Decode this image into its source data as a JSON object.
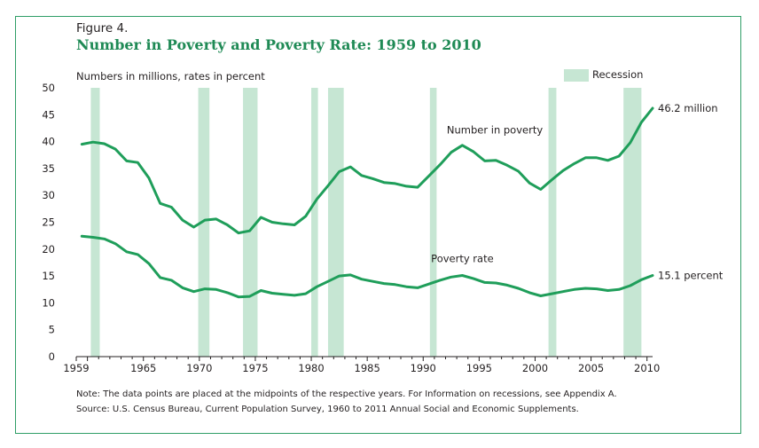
{
  "figure_label": "Figure 4.",
  "units_label": "Numbers in millions, rates in percent",
  "note": "Note:  The data points are placed at the midpoints of the respective years. For Information on recessions, see Appendix A.",
  "source": "Source:  U.S. Census Bureau, Current Population Survey, 1960 to 2011 Annual Social and Economic Supplements.",
  "colors": {
    "series": "#1f9e5a",
    "recession": "#c6e6d3",
    "border": "#2f9e67",
    "title": "#1f8a55"
  },
  "chart_data": {
    "type": "line",
    "title": "Number in Poverty and Poverty Rate: 1959 to 2010",
    "xlim": [
      1959,
      2010.5
    ],
    "ylim": [
      0,
      50
    ],
    "yticks": [
      0,
      5,
      10,
      15,
      20,
      25,
      30,
      35,
      40,
      45,
      50
    ],
    "xticks": [
      1959,
      1965,
      1970,
      1975,
      1980,
      1985,
      1990,
      1995,
      2000,
      2005,
      2010
    ],
    "grid": false,
    "legend": {
      "label": "Recession",
      "position": "top-right"
    },
    "recessions": [
      [
        1960.3,
        1961.1
      ],
      [
        1969.9,
        1970.9
      ],
      [
        1973.9,
        1975.2
      ],
      [
        1980.0,
        1980.6
      ],
      [
        1981.5,
        1982.9
      ],
      [
        1990.6,
        1991.2
      ],
      [
        2001.2,
        2001.9
      ],
      [
        2007.9,
        2009.5
      ]
    ],
    "x": [
      1959,
      1960,
      1961,
      1962,
      1963,
      1964,
      1965,
      1966,
      1967,
      1968,
      1969,
      1970,
      1971,
      1972,
      1973,
      1974,
      1975,
      1976,
      1977,
      1978,
      1979,
      1980,
      1981,
      1982,
      1983,
      1984,
      1985,
      1986,
      1987,
      1988,
      1989,
      1990,
      1991,
      1992,
      1993,
      1994,
      1995,
      1996,
      1997,
      1998,
      1999,
      2000,
      2001,
      2002,
      2003,
      2004,
      2005,
      2006,
      2007,
      2008,
      2009,
      2010
    ],
    "series": [
      {
        "name": "Number in poverty",
        "end_label": "46.2 million",
        "values": [
          39.5,
          39.9,
          39.6,
          38.6,
          36.4,
          36.1,
          33.2,
          28.5,
          27.8,
          25.4,
          24.1,
          25.4,
          25.6,
          24.5,
          23.0,
          23.4,
          25.9,
          25.0,
          24.7,
          24.5,
          26.1,
          29.3,
          31.8,
          34.4,
          35.3,
          33.7,
          33.1,
          32.4,
          32.2,
          31.7,
          31.5,
          33.6,
          35.7,
          38.0,
          39.3,
          38.1,
          36.4,
          36.5,
          35.6,
          34.5,
          32.3,
          31.1,
          32.9,
          34.6,
          35.9,
          37.0,
          37.0,
          36.5,
          37.3,
          39.8,
          43.6,
          46.2
        ]
      },
      {
        "name": "Poverty rate",
        "end_label": "15.1 percent",
        "values": [
          22.4,
          22.2,
          21.9,
          21.0,
          19.5,
          19.0,
          17.3,
          14.7,
          14.2,
          12.8,
          12.1,
          12.6,
          12.5,
          11.9,
          11.1,
          11.2,
          12.3,
          11.8,
          11.6,
          11.4,
          11.7,
          13.0,
          14.0,
          15.0,
          15.2,
          14.4,
          14.0,
          13.6,
          13.4,
          13.0,
          12.8,
          13.5,
          14.2,
          14.8,
          15.1,
          14.5,
          13.8,
          13.7,
          13.3,
          12.7,
          11.9,
          11.3,
          11.7,
          12.1,
          12.5,
          12.7,
          12.6,
          12.3,
          12.5,
          13.2,
          14.3,
          15.1
        ]
      }
    ]
  }
}
